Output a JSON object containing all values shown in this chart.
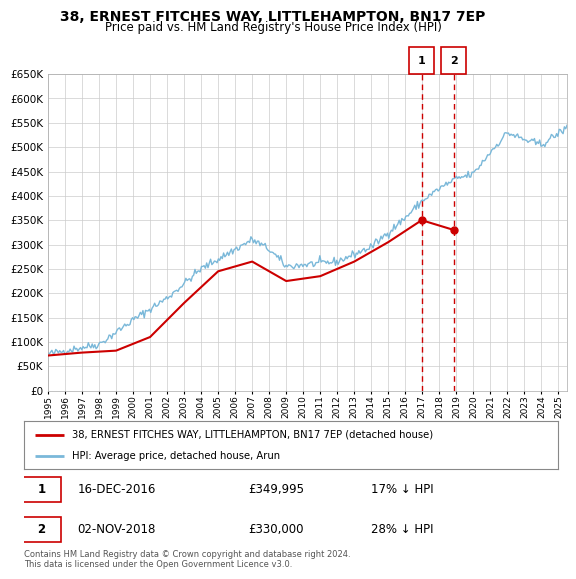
{
  "title": "38, ERNEST FITCHES WAY, LITTLEHAMPTON, BN17 7EP",
  "subtitle": "Price paid vs. HM Land Registry's House Price Index (HPI)",
  "legend_line1": "38, ERNEST FITCHES WAY, LITTLEHAMPTON, BN17 7EP (detached house)",
  "legend_line2": "HPI: Average price, detached house, Arun",
  "annotation1_date": "16-DEC-2016",
  "annotation1_price": "£349,995",
  "annotation1_hpi": "17% ↓ HPI",
  "annotation2_date": "02-NOV-2018",
  "annotation2_price": "£330,000",
  "annotation2_hpi": "28% ↓ HPI",
  "footnote": "Contains HM Land Registry data © Crown copyright and database right 2024.\nThis data is licensed under the Open Government Licence v3.0.",
  "sale1_year": 2016.96,
  "sale1_price": 349995,
  "sale2_year": 2018.84,
  "sale2_price": 330000,
  "hpi_color": "#7ab8d9",
  "sale_color": "#cc0000",
  "dashed_color": "#cc0000",
  "background_color": "#ffffff",
  "grid_color": "#cccccc",
  "ylim_min": 0,
  "ylim_max": 650000,
  "xlim_min": 1995,
  "xlim_max": 2025.5
}
